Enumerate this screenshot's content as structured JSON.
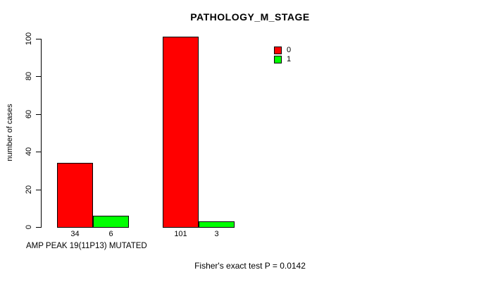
{
  "chart_data": {
    "type": "bar",
    "title": "PATHOLOGY_M_STAGE",
    "ylabel": "number of cases",
    "xlabel": "AMP PEAK 19(11P13) MUTATED",
    "ylim": [
      0,
      100
    ],
    "yticks": [
      0,
      20,
      40,
      60,
      80,
      100
    ],
    "grid": false,
    "legend_position": "top-right",
    "series": [
      {
        "name": "0",
        "color": "#FF0000"
      },
      {
        "name": "1",
        "color": "#00FF00"
      }
    ],
    "groups": [
      {
        "values": [
          34,
          6
        ]
      },
      {
        "values": [
          101,
          3
        ]
      }
    ],
    "bar_value_labels": [
      [
        "34",
        "6"
      ],
      [
        "101",
        "3"
      ]
    ],
    "annotation": "Fisher's exact test P = 0.0142"
  },
  "colors": {
    "background": "#FFFFFF",
    "axis": "#000000",
    "text": "#000000",
    "series0": "#FF0000",
    "series1": "#00FF00"
  }
}
